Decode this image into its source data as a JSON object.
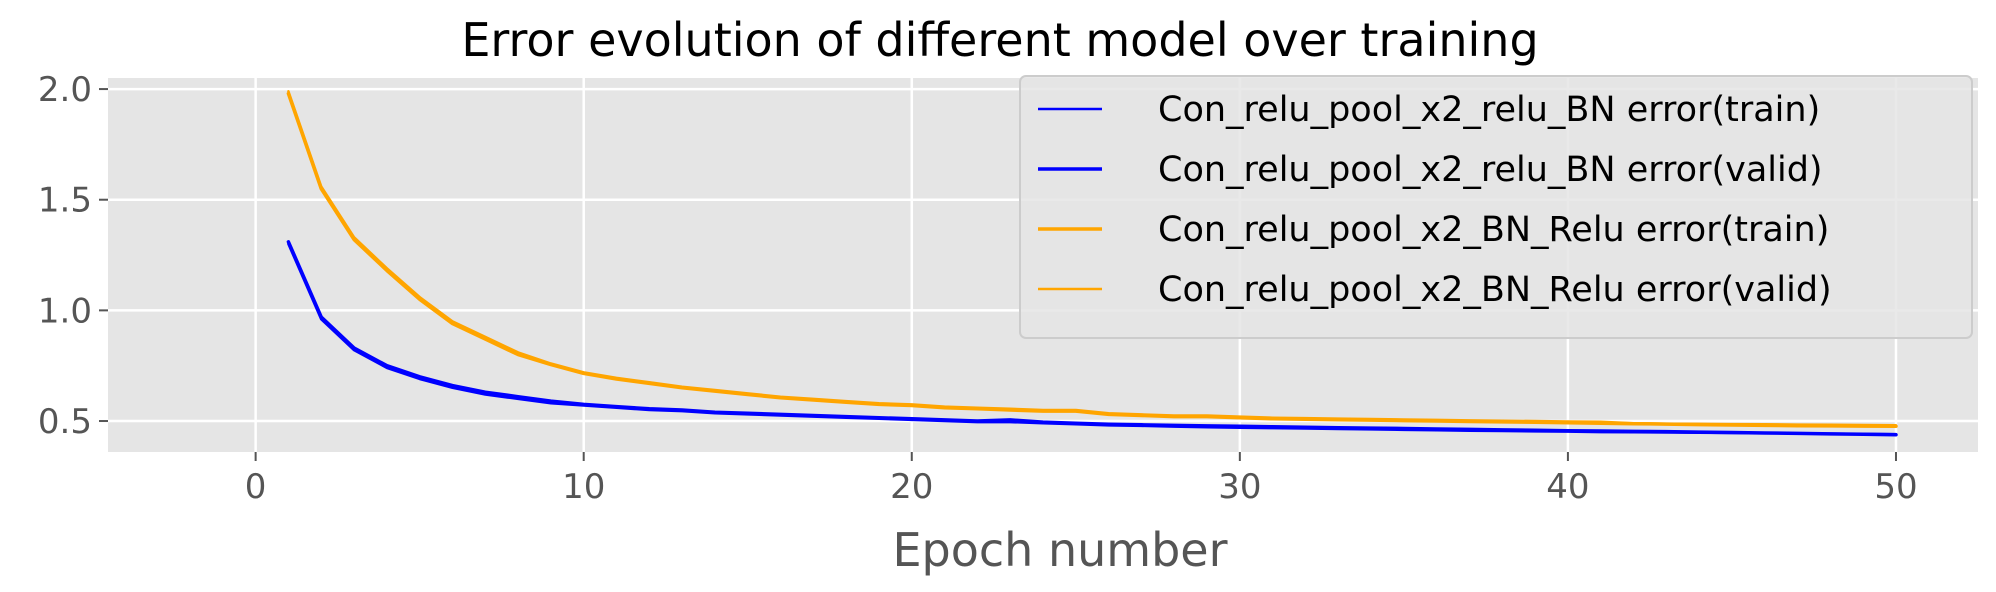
{
  "chart_data": {
    "type": "line",
    "title": "Error evolution of different model over training",
    "xlabel": "Epoch number",
    "ylabel": "",
    "xlim": [
      -4.5,
      52.5
    ],
    "ylim": [
      0.36,
      2.05
    ],
    "xticks": [
      0,
      10,
      20,
      30,
      40,
      50
    ],
    "yticks": [
      0.5,
      1.0,
      1.5,
      2.0
    ],
    "ytick_labels": [
      "0.5",
      "1.0",
      "1.5",
      "2.0"
    ],
    "grid": true,
    "background": "#e5e5e5",
    "legend_position": "top-right",
    "series": [
      {
        "name": "Con_relu_pool_x2_relu_BN error(train)",
        "color": "#0000ff",
        "x": [
          1,
          2,
          3,
          4,
          5,
          6,
          7,
          8,
          9,
          10,
          11,
          12,
          13,
          14,
          15,
          16,
          17,
          18,
          19,
          20,
          21,
          22,
          23,
          24,
          25,
          26,
          27,
          28,
          29,
          30,
          31,
          32,
          33,
          34,
          35,
          36,
          37,
          38,
          39,
          40,
          41,
          42,
          43,
          44,
          45,
          46,
          47,
          48,
          49,
          50
        ],
        "values": [
          1.3,
          0.96,
          0.82,
          0.74,
          0.69,
          0.65,
          0.62,
          0.6,
          0.58,
          0.57,
          0.56,
          0.55,
          0.545,
          0.535,
          0.53,
          0.525,
          0.52,
          0.515,
          0.51,
          0.505,
          0.5,
          0.495,
          0.495,
          0.49,
          0.485,
          0.48,
          0.478,
          0.475,
          0.472,
          0.47,
          0.468,
          0.466,
          0.464,
          0.462,
          0.46,
          0.458,
          0.456,
          0.455,
          0.453,
          0.452,
          0.45,
          0.449,
          0.448,
          0.447,
          0.446,
          0.445,
          0.444,
          0.443,
          0.442,
          0.441
        ]
      },
      {
        "name": "Con_relu_pool_x2_relu_BN error(valid)",
        "color": "#0000ff",
        "x": [
          1,
          2,
          3,
          4,
          5,
          6,
          7,
          8,
          9,
          10,
          11,
          12,
          13,
          14,
          15,
          16,
          17,
          18,
          19,
          20,
          21,
          22,
          23,
          24,
          25,
          26,
          27,
          28,
          29,
          30,
          31,
          32,
          33,
          34,
          35,
          36,
          37,
          38,
          39,
          40,
          41,
          42,
          43,
          44,
          45,
          46,
          47,
          48,
          49,
          50
        ],
        "values": [
          1.31,
          0.97,
          0.83,
          0.75,
          0.7,
          0.66,
          0.63,
          0.61,
          0.59,
          0.575,
          0.565,
          0.555,
          0.55,
          0.54,
          0.535,
          0.53,
          0.525,
          0.52,
          0.515,
          0.51,
          0.505,
          0.5,
          0.505,
          0.495,
          0.49,
          0.485,
          0.483,
          0.48,
          0.478,
          0.476,
          0.474,
          0.472,
          0.47,
          0.468,
          0.466,
          0.464,
          0.462,
          0.46,
          0.458,
          0.456,
          0.455,
          0.453,
          0.452,
          0.45,
          0.448,
          0.446,
          0.444,
          0.442,
          0.44,
          0.438
        ]
      },
      {
        "name": "Con_relu_pool_x2_BN_Relu error(train)",
        "color": "#ffa500",
        "x": [
          1,
          2,
          3,
          4,
          5,
          6,
          7,
          8,
          9,
          10,
          11,
          12,
          13,
          14,
          15,
          16,
          17,
          18,
          19,
          20,
          21,
          22,
          23,
          24,
          25,
          26,
          27,
          28,
          29,
          30,
          31,
          32,
          33,
          34,
          35,
          36,
          37,
          38,
          39,
          40,
          41,
          42,
          43,
          44,
          45,
          46,
          47,
          48,
          49,
          50
        ],
        "values": [
          1.98,
          1.55,
          1.32,
          1.18,
          1.05,
          0.94,
          0.87,
          0.8,
          0.755,
          0.715,
          0.69,
          0.67,
          0.65,
          0.635,
          0.62,
          0.605,
          0.595,
          0.585,
          0.575,
          0.57,
          0.56,
          0.555,
          0.55,
          0.545,
          0.545,
          0.53,
          0.525,
          0.52,
          0.52,
          0.515,
          0.51,
          0.508,
          0.506,
          0.504,
          0.502,
          0.5,
          0.498,
          0.496,
          0.494,
          0.492,
          0.49,
          0.488,
          0.486,
          0.484,
          0.482,
          0.48,
          0.479,
          0.478,
          0.477,
          0.476
        ]
      },
      {
        "name": "Con_relu_pool_x2_BN_Relu error(valid)",
        "color": "#ffa500",
        "x": [
          1,
          2,
          3,
          4,
          5,
          6,
          7,
          8,
          9,
          10,
          11,
          12,
          13,
          14,
          15,
          16,
          17,
          18,
          19,
          20,
          21,
          22,
          23,
          24,
          25,
          26,
          27,
          28,
          29,
          30,
          31,
          32,
          33,
          34,
          35,
          36,
          37,
          38,
          39,
          40,
          41,
          42,
          43,
          44,
          45,
          46,
          47,
          48,
          49,
          50
        ],
        "values": [
          1.99,
          1.56,
          1.33,
          1.19,
          1.06,
          0.95,
          0.88,
          0.81,
          0.76,
          0.72,
          0.695,
          0.675,
          0.655,
          0.64,
          0.625,
          0.61,
          0.6,
          0.59,
          0.58,
          0.575,
          0.565,
          0.56,
          0.555,
          0.55,
          0.55,
          0.535,
          0.53,
          0.525,
          0.525,
          0.52,
          0.515,
          0.513,
          0.511,
          0.509,
          0.507,
          0.505,
          0.503,
          0.501,
          0.5,
          0.498,
          0.497,
          0.49,
          0.488,
          0.487,
          0.486,
          0.485,
          0.484,
          0.483,
          0.482,
          0.481
        ]
      }
    ]
  }
}
